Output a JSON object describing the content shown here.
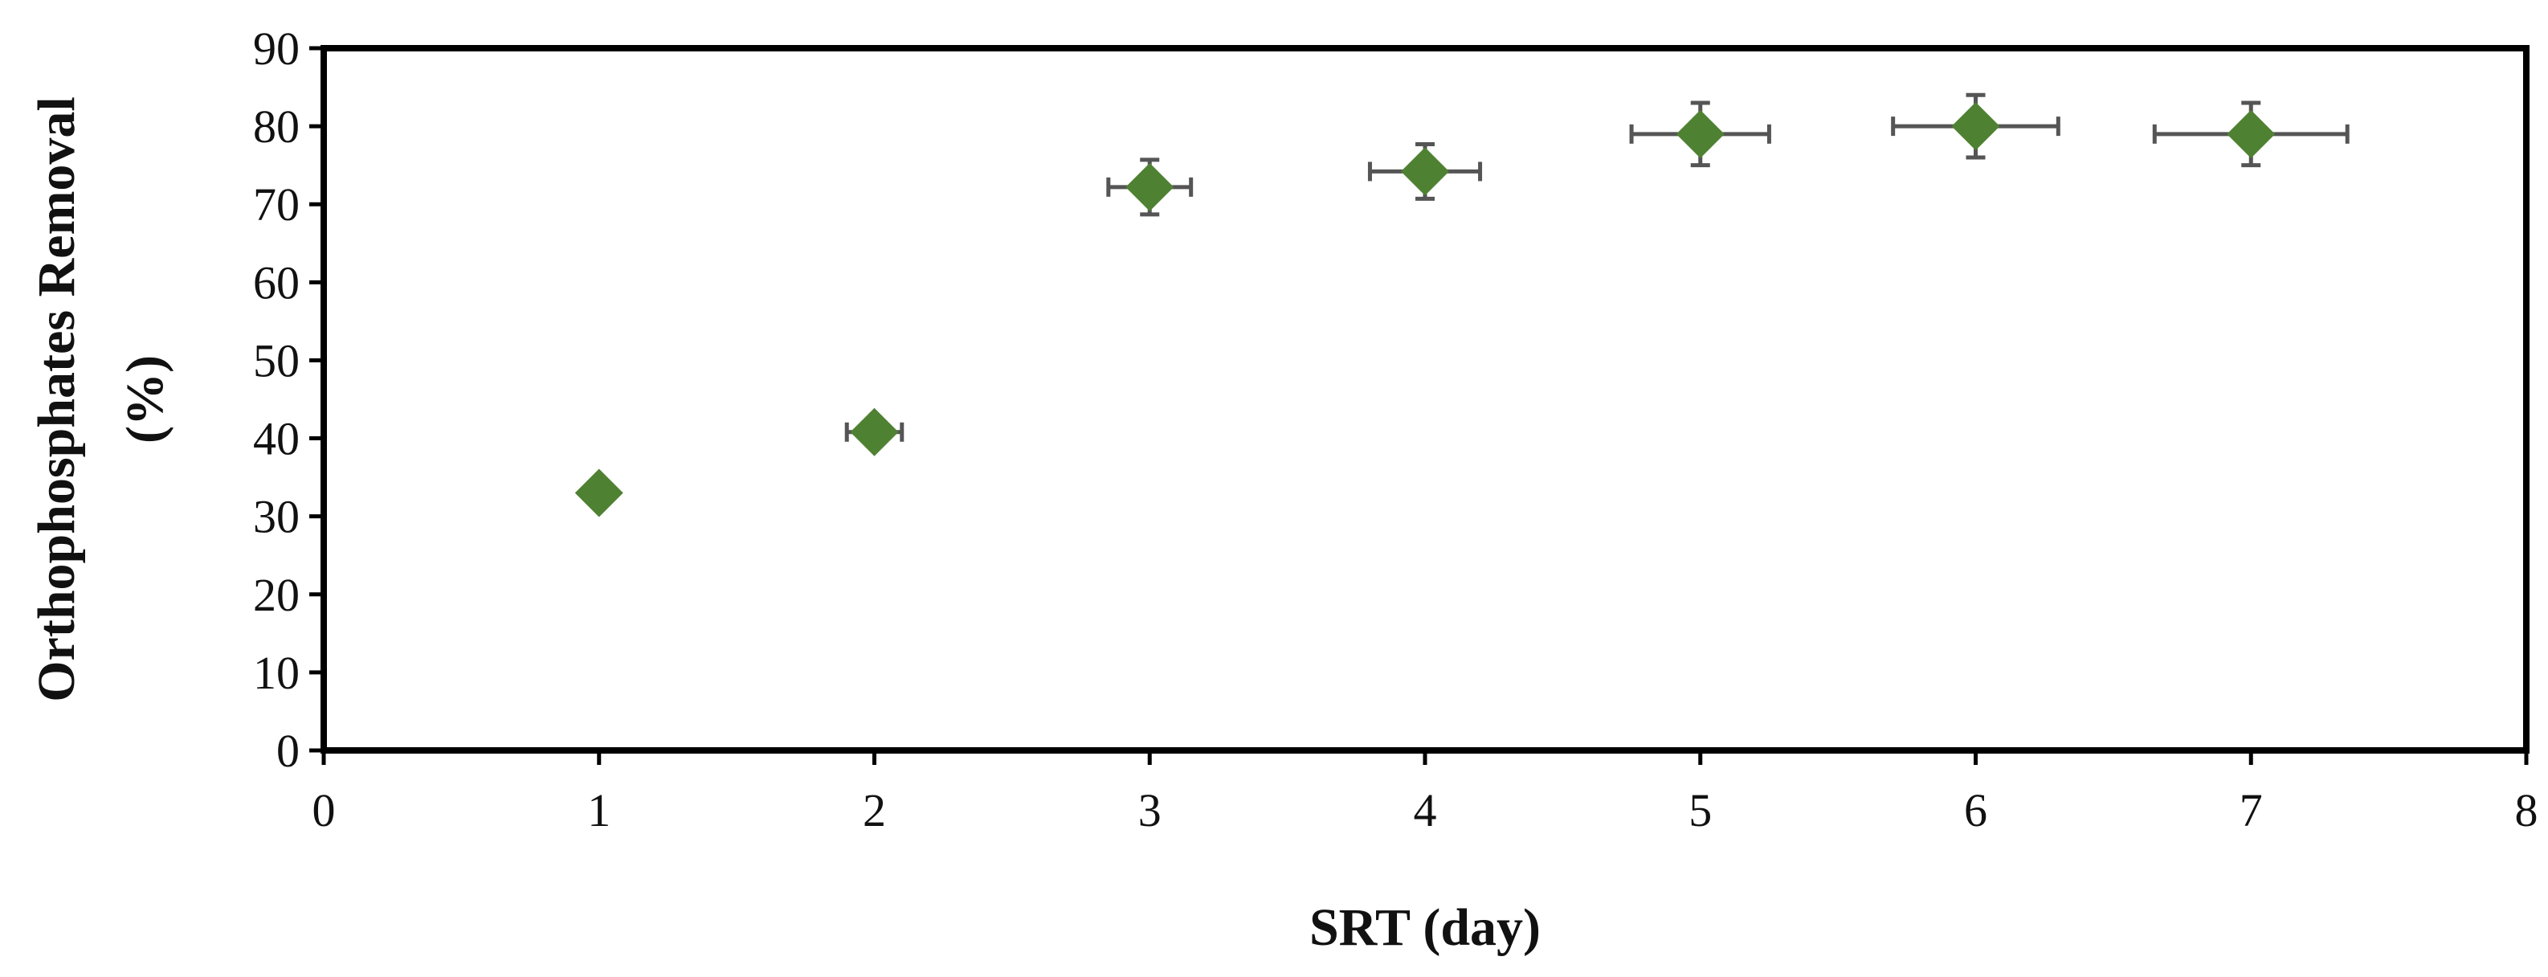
{
  "chart_data": {
    "type": "scatter",
    "title": "",
    "xlabel": "SRT (day)",
    "ylabel_lines": [
      "Orthophosphates Removal",
      "(%)"
    ],
    "xlim": [
      0,
      8
    ],
    "ylim": [
      0,
      90
    ],
    "x_ticks": [
      0,
      1,
      2,
      3,
      4,
      5,
      6,
      7,
      8
    ],
    "y_ticks": [
      0,
      10,
      20,
      30,
      40,
      50,
      60,
      70,
      80,
      90
    ],
    "grid": false,
    "legend": "none",
    "marker": "diamond",
    "marker_color": "#4f8132",
    "errorbar_color": "#555555",
    "series": [
      {
        "x": [
          1,
          2,
          3,
          4,
          5,
          6,
          7
        ],
        "y": [
          33,
          40.8,
          72.2,
          74.2,
          79,
          80,
          79
        ],
        "x_err": [
          0,
          0.1,
          0.15,
          0.2,
          0.25,
          0.3,
          0.35
        ],
        "y_err": [
          0,
          0,
          3.5,
          3.5,
          4,
          4,
          4
        ]
      }
    ]
  }
}
